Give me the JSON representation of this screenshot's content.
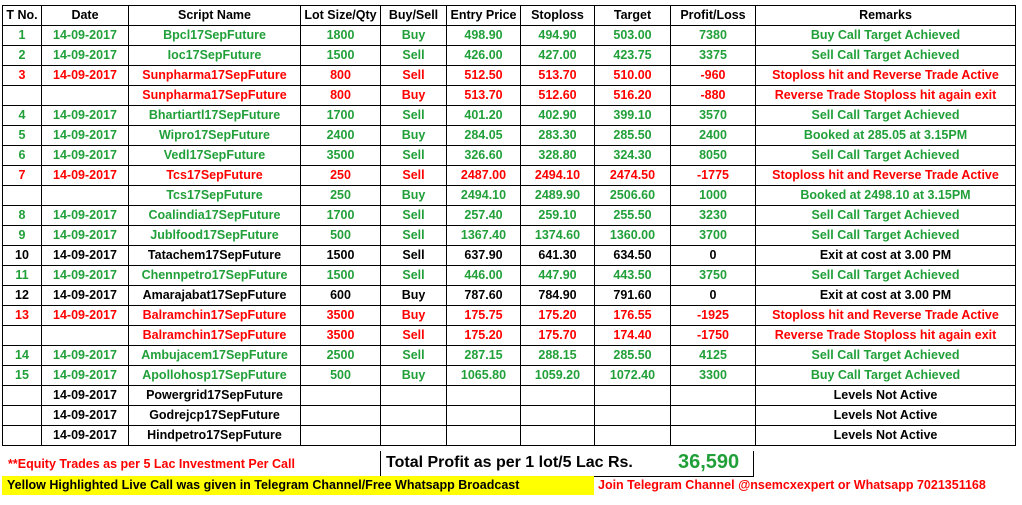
{
  "colors": {
    "green": "#21a03a",
    "red": "#ff0000",
    "black": "#000000",
    "highlight": "#ffff00"
  },
  "headers": [
    "T No.",
    "Date",
    "Script Name",
    "Lot Size/Qty",
    "Buy/Sell",
    "Entry Price",
    "Stoploss",
    "Target",
    "Profit/Loss",
    "Remarks"
  ],
  "rows": [
    {
      "color": "green",
      "tno": "1",
      "date": "14-09-2017",
      "script": "Bpcl17SepFuture",
      "lot": "1800",
      "side": "Buy",
      "entry": "498.90",
      "stop": "494.90",
      "target": "503.00",
      "pl": "7380",
      "remarks": "Buy Call Target Achieved"
    },
    {
      "color": "green",
      "tno": "2",
      "date": "14-09-2017",
      "script": "Ioc17SepFuture",
      "lot": "1500",
      "side": "Sell",
      "entry": "426.00",
      "stop": "427.00",
      "target": "423.75",
      "pl": "3375",
      "remarks": "Sell Call Target Achieved"
    },
    {
      "color": "red",
      "tno": "3",
      "date": "14-09-2017",
      "script": "Sunpharma17SepFuture",
      "lot": "800",
      "side": "Sell",
      "entry": "512.50",
      "stop": "513.70",
      "target": "510.00",
      "pl": "-960",
      "remarks": "Stoploss hit and Reverse Trade Active"
    },
    {
      "color": "red",
      "tno": "",
      "date": "",
      "script": "Sunpharma17SepFuture",
      "lot": "800",
      "side": "Buy",
      "entry": "513.70",
      "stop": "512.60",
      "target": "516.20",
      "pl": "-880",
      "remarks": "Reverse Trade Stoploss hit again exit"
    },
    {
      "color": "green",
      "tno": "4",
      "date": "14-09-2017",
      "script": "Bhartiartl17SepFuture",
      "lot": "1700",
      "side": "Sell",
      "entry": "401.20",
      "stop": "402.90",
      "target": "399.10",
      "pl": "3570",
      "remarks": "Sell Call Target Achieved"
    },
    {
      "color": "green",
      "tno": "5",
      "date": "14-09-2017",
      "script": "Wipro17SepFuture",
      "lot": "2400",
      "side": "Buy",
      "entry": "284.05",
      "stop": "283.30",
      "target": "285.50",
      "pl": "2400",
      "remarks": "Booked at 285.05 at 3.15PM"
    },
    {
      "color": "green",
      "tno": "6",
      "date": "14-09-2017",
      "script": "Vedl17SepFuture",
      "lot": "3500",
      "side": "Sell",
      "entry": "326.60",
      "stop": "328.80",
      "target": "324.30",
      "pl": "8050",
      "remarks": "Sell Call Target Achieved"
    },
    {
      "color": "red",
      "tno": "7",
      "date": "14-09-2017",
      "script": "Tcs17SepFuture",
      "lot": "250",
      "side": "Sell",
      "entry": "2487.00",
      "stop": "2494.10",
      "target": "2474.50",
      "pl": "-1775",
      "remarks": "Stoploss hit and Reverse Trade Active"
    },
    {
      "color": "green",
      "tno": "",
      "date": "",
      "script": "Tcs17SepFuture",
      "lot": "250",
      "side": "Buy",
      "entry": "2494.10",
      "stop": "2489.90",
      "target": "2506.60",
      "pl": "1000",
      "remarks": "Booked at 2498.10 at 3.15PM"
    },
    {
      "color": "green",
      "tno": "8",
      "date": "14-09-2017",
      "script": "Coalindia17SepFuture",
      "lot": "1700",
      "side": "Sell",
      "entry": "257.40",
      "stop": "259.10",
      "target": "255.50",
      "pl": "3230",
      "remarks": "Sell Call Target Achieved"
    },
    {
      "color": "green",
      "tno": "9",
      "date": "14-09-2017",
      "script": "Jublfood17SepFuture",
      "lot": "500",
      "side": "Sell",
      "entry": "1367.40",
      "stop": "1374.60",
      "target": "1360.00",
      "pl": "3700",
      "remarks": "Sell Call Target Achieved"
    },
    {
      "color": "black",
      "tno": "10",
      "date": "14-09-2017",
      "script": "Tatachem17SepFuture",
      "lot": "1500",
      "side": "Sell",
      "entry": "637.90",
      "stop": "641.30",
      "target": "634.50",
      "pl": "0",
      "remarks": "Exit at cost at 3.00 PM"
    },
    {
      "color": "green",
      "tno": "11",
      "date": "14-09-2017",
      "script": "Chennpetro17SepFuture",
      "lot": "1500",
      "side": "Sell",
      "entry": "446.00",
      "stop": "447.90",
      "target": "443.50",
      "pl": "3750",
      "remarks": "Sell Call Target Achieved"
    },
    {
      "color": "black",
      "tno": "12",
      "date": "14-09-2017",
      "script": "Amarajabat17SepFuture",
      "lot": "600",
      "side": "Buy",
      "entry": "787.60",
      "stop": "784.90",
      "target": "791.60",
      "pl": "0",
      "remarks": "Exit at cost at 3.00 PM"
    },
    {
      "color": "red",
      "tno": "13",
      "date": "14-09-2017",
      "script": "Balramchin17SepFuture",
      "lot": "3500",
      "side": "Buy",
      "entry": "175.75",
      "stop": "175.20",
      "target": "176.55",
      "pl": "-1925",
      "remarks": "Stoploss hit and Reverse Trade Active"
    },
    {
      "color": "red",
      "tno": "",
      "date": "",
      "script": "Balramchin17SepFuture",
      "lot": "3500",
      "side": "Sell",
      "entry": "175.20",
      "stop": "175.70",
      "target": "174.40",
      "pl": "-1750",
      "remarks": "Reverse Trade Stoploss hit again exit"
    },
    {
      "color": "green",
      "tno": "14",
      "date": "14-09-2017",
      "script": "Ambujacem17SepFuture",
      "lot": "2500",
      "side": "Sell",
      "entry": "287.15",
      "stop": "288.15",
      "target": "285.50",
      "pl": "4125",
      "remarks": "Sell Call Target Achieved"
    },
    {
      "color": "green",
      "tno": "15",
      "date": "14-09-2017",
      "script": "Apollohosp17SepFuture",
      "lot": "500",
      "side": "Buy",
      "entry": "1065.80",
      "stop": "1059.20",
      "target": "1072.40",
      "pl": "3300",
      "remarks": "Buy Call Target Achieved"
    },
    {
      "color": "black",
      "tno": "",
      "date": "14-09-2017",
      "script": "Powergrid17SepFuture",
      "lot": "",
      "side": "",
      "entry": "",
      "stop": "",
      "target": "",
      "pl": "",
      "remarks": "Levels Not Active"
    },
    {
      "color": "black",
      "tno": "",
      "date": "14-09-2017",
      "script": "Godrejcp17SepFuture",
      "lot": "",
      "side": "",
      "entry": "",
      "stop": "",
      "target": "",
      "pl": "",
      "remarks": "Levels Not Active"
    },
    {
      "color": "black",
      "tno": "",
      "date": "14-09-2017",
      "script": "Hindpetro17SepFuture",
      "lot": "",
      "side": "",
      "entry": "",
      "stop": "",
      "target": "",
      "pl": "",
      "remarks": "Levels Not Active"
    }
  ],
  "footer": {
    "note": "**Equity Trades as per 5 Lac Investment Per Call",
    "total_label": "Total Profit as per 1 lot/5 Lac Rs.",
    "total_value": "36,590",
    "highlight_note": "Yellow Highlighted Live Call was given in Telegram Channel/Free Whatsapp Broadcast",
    "join_text": "Join Telegram Channel @nsemcxexpert or Whatsapp 7021351168"
  }
}
